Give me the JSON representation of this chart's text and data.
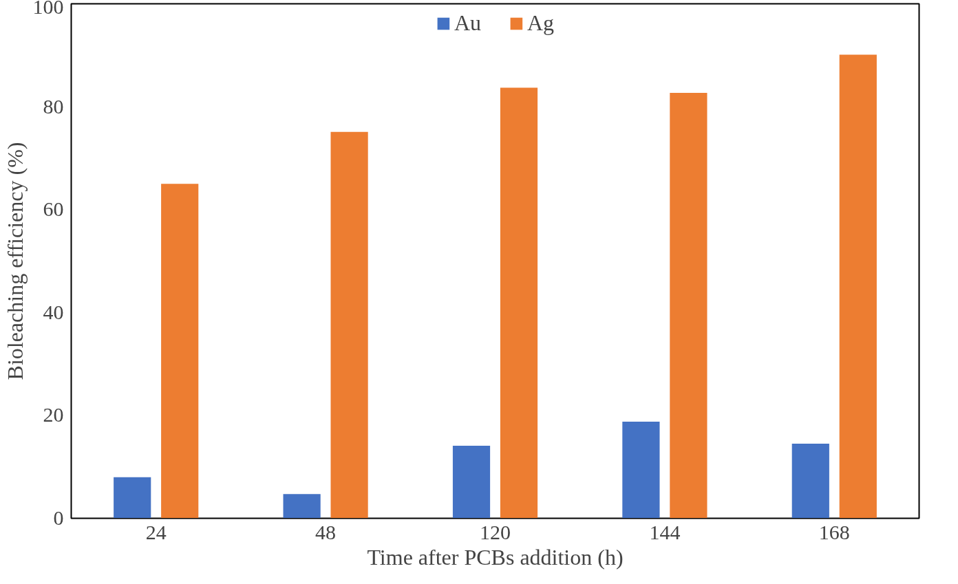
{
  "chart_data": {
    "type": "bar",
    "xlabel": "Time after PCBs addition (h)",
    "ylabel": "Bioleaching efficiency (%)",
    "categories": [
      "24",
      "48",
      "120",
      "144",
      "168"
    ],
    "series": [
      {
        "name": "Au",
        "color": "#4472c4",
        "values": [
          8.0,
          4.7,
          14.1,
          18.8,
          14.5
        ]
      },
      {
        "name": "Ag",
        "color": "#ed7d31",
        "values": [
          65.0,
          75.1,
          83.7,
          82.7,
          90.1
        ]
      }
    ],
    "ylim": [
      0,
      100
    ],
    "yticks": [
      0,
      20,
      40,
      60,
      80,
      100
    ],
    "grid": false,
    "legend": "top"
  }
}
